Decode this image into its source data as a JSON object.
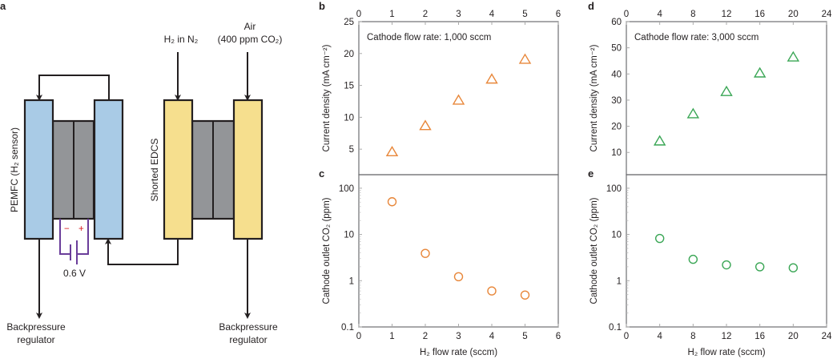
{
  "panel_labels": {
    "a": "a",
    "b": "b",
    "c": "c",
    "d": "d",
    "e": "e"
  },
  "diagram": {
    "pemfc_label": "PEMFC (H₂ sensor)",
    "edcs_label": "Shorted EDCS",
    "h2_inlet": "H₂ in N₂",
    "air_line1": "Air",
    "air_line2": "(400 ppm CO₂)",
    "bpr_left_line1": "Backpressure",
    "bpr_left_line2": "regulator",
    "bpr_right_line1": "Backpressure",
    "bpr_right_line2": "regulator",
    "battery_minus": "−",
    "battery_plus": "+",
    "voltage": "0.6 V",
    "colors": {
      "pemfc": "#a9cbe6",
      "edcs": "#f6df8e",
      "membrane": "#939598",
      "battery": "#6a3d9a",
      "polarity": "#d7191c"
    }
  },
  "chart_data": [
    {
      "panel": "b",
      "type": "scatter",
      "marker": "triangle",
      "color": "#e8873a",
      "annotation": "Cathode flow rate: 1,000 sccm",
      "ylabel": "Current density (mA cm⁻²)",
      "xlabel": "",
      "x": [
        1,
        2,
        3,
        4,
        5
      ],
      "y": [
        4.6,
        8.7,
        12.7,
        16.0,
        19.1
      ],
      "xlim": [
        0,
        6
      ],
      "xticks": [
        "0",
        "1",
        "2",
        "3",
        "4",
        "5",
        "6"
      ],
      "ylim": [
        1,
        25
      ],
      "yticks": [
        "5",
        "10",
        "15",
        "20",
        "25"
      ],
      "yscale": "linear",
      "xaxis_position": "top"
    },
    {
      "panel": "c",
      "type": "scatter",
      "marker": "circle",
      "color": "#e8873a",
      "ylabel": "Cathode outlet CO₂ (ppm)",
      "xlabel": "H₂ flow rate (sccm)",
      "x": [
        1,
        2,
        3,
        4,
        5
      ],
      "y": [
        51,
        3.9,
        1.22,
        0.6,
        0.49
      ],
      "xlim": [
        0,
        6
      ],
      "xticks": [
        "0",
        "1",
        "2",
        "3",
        "4",
        "5",
        "6"
      ],
      "ylim": [
        0.1,
        196
      ],
      "yticks": [
        "0.1",
        "1",
        "10",
        "100"
      ],
      "yscale": "log",
      "xaxis_position": "bottom"
    },
    {
      "panel": "d",
      "type": "scatter",
      "marker": "triangle",
      "color": "#3aa655",
      "annotation": "Cathode flow rate: 3,000 sccm",
      "ylabel": "Current density (mA cm⁻²)",
      "xlabel": "",
      "x": [
        4,
        8,
        12,
        16,
        20
      ],
      "y": [
        14.4,
        24.8,
        33.3,
        40.4,
        46.5
      ],
      "xlim": [
        0,
        24
      ],
      "xticks": [
        "0",
        "4",
        "8",
        "12",
        "16",
        "20",
        "24"
      ],
      "ylim": [
        1.5,
        60
      ],
      "yticks": [
        "10",
        "20",
        "30",
        "40",
        "50",
        "60"
      ],
      "yscale": "linear",
      "xaxis_position": "top"
    },
    {
      "panel": "e",
      "type": "scatter",
      "marker": "circle",
      "color": "#3aa655",
      "ylabel": "Cathode outlet CO₂ (ppm)",
      "xlabel": "H₂ flow rate (sccm)",
      "x": [
        4,
        8,
        12,
        16,
        20
      ],
      "y": [
        8.2,
        2.9,
        2.2,
        2.0,
        1.9
      ],
      "xlim": [
        0,
        24
      ],
      "xticks": [
        "0",
        "4",
        "8",
        "12",
        "16",
        "20",
        "24"
      ],
      "ylim": [
        0.1,
        196
      ],
      "yticks": [
        "0.1",
        "1",
        "10",
        "100"
      ],
      "yscale": "log",
      "xaxis_position": "bottom"
    }
  ]
}
